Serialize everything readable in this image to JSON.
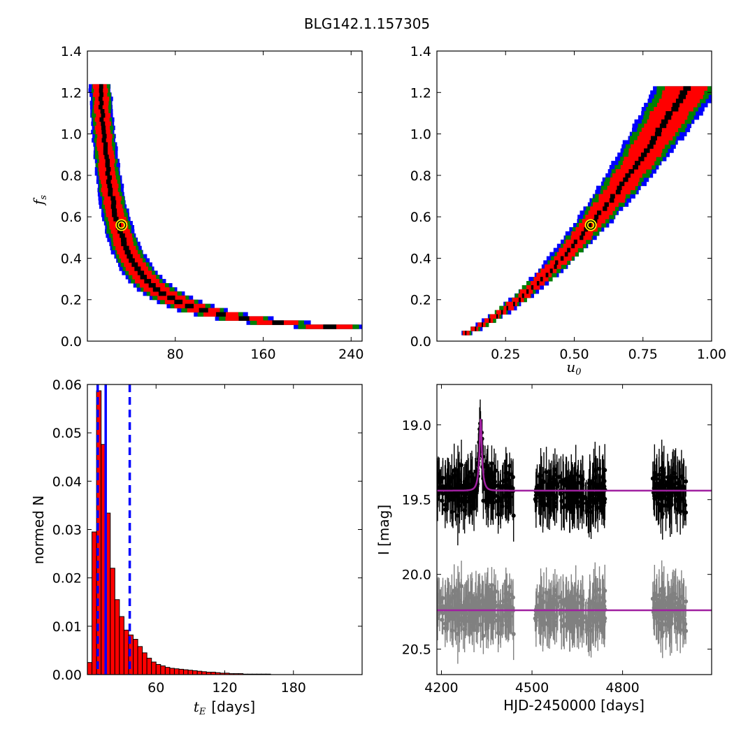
{
  "figure": {
    "title": "BLG142.1.157305"
  },
  "colors": {
    "sigma1": "#000000",
    "sigma2": "#ff0000",
    "sigma3": "#008000",
    "sigma4": "#0000ff",
    "best_fit_marker": "#ffff00",
    "bar": "#ff0000",
    "median_line": "#0000ff",
    "model_curve": "#a020a0",
    "data_main": "#000000",
    "data_residual": "#808080"
  },
  "chart_data": [
    {
      "type": "heatmap",
      "panel": "tE-fs",
      "xlabel": "",
      "ylabel": "f_s",
      "xlim": [
        0,
        250
      ],
      "ylim": [
        0.0,
        1.4
      ],
      "xticks": [
        80,
        160,
        240
      ],
      "yticks": [
        0.0,
        0.2,
        0.4,
        0.6,
        0.8,
        1.0,
        1.2,
        1.4
      ],
      "best_fit": {
        "x": 31,
        "y": 0.56
      },
      "levels": [
        "1-sigma (black)",
        "2-sigma (red)",
        "3-sigma (green)",
        "4-sigma (blue)"
      ]
    },
    {
      "type": "heatmap",
      "panel": "u0-fs",
      "xlabel": "u_0",
      "ylabel": "",
      "xlim": [
        0.0,
        1.0
      ],
      "ylim": [
        0.0,
        1.4
      ],
      "xticks": [
        0.25,
        0.5,
        0.75,
        1.0
      ],
      "xtick_labels": [
        "0.25",
        "0.50",
        "0.75",
        "1.00"
      ],
      "yticks": [
        0.0,
        0.2,
        0.4,
        0.6,
        0.8,
        1.0,
        1.2,
        1.4
      ],
      "best_fit": {
        "x": 0.56,
        "y": 0.56
      }
    },
    {
      "type": "bar",
      "panel": "tE-histogram",
      "xlabel": "t_E [days]",
      "ylabel": "normed N",
      "xlim": [
        0,
        240
      ],
      "ylim": [
        0.0,
        0.06
      ],
      "xticks": [
        60,
        120,
        180
      ],
      "yticks": [
        0.0,
        0.01,
        0.02,
        0.03,
        0.04,
        0.05,
        0.06
      ],
      "bin_width": 4,
      "bin_start": 0,
      "values": [
        0.0025,
        0.0295,
        0.0587,
        0.0476,
        0.0334,
        0.022,
        0.0155,
        0.012,
        0.0092,
        0.0082,
        0.0073,
        0.0058,
        0.0045,
        0.0034,
        0.0026,
        0.0021,
        0.0018,
        0.0015,
        0.0013,
        0.0012,
        0.0011,
        0.001,
        0.0009,
        0.0008,
        0.0007,
        0.0006,
        0.0005,
        0.0005,
        0.0004,
        0.0003,
        0.0003,
        0.0002,
        0.0002,
        0.0002,
        0.0001,
        0.0001,
        0.0001,
        0.0001,
        0.0001,
        0.0001
      ],
      "median": 16,
      "lower": 9,
      "upper": 37
    },
    {
      "type": "scatter",
      "panel": "light-curve",
      "xlabel": "HJD-2450000 [days]",
      "ylabel": "I [mag]",
      "xlim": [
        4185,
        5095
      ],
      "ylim": [
        20.67,
        18.73
      ],
      "xticks": [
        4200,
        4500,
        4800
      ],
      "yticks": [
        19.0,
        19.5,
        20.0,
        20.5
      ],
      "ytick_labels": [
        "19.0",
        "19.5",
        "20.0",
        "20.5"
      ],
      "baseline": 19.44,
      "peak_mag": 18.96,
      "peak_time": 4330,
      "residual_offset": 0.8,
      "seasons": [
        [
          4185,
          4440
        ],
        [
          4510,
          4745
        ],
        [
          4900,
          5010
        ]
      ]
    }
  ],
  "axis_text": {
    "p1_ylabel_f": "f",
    "p1_ylabel_sub": "s",
    "p2_xlabel_u": "u",
    "p2_xlabel_sub": "0",
    "p3_xlabel_t": "t",
    "p3_xlabel_sub": "E",
    "p3_xlabel_unit": "[days]",
    "p3_ylabel": "normed N",
    "p4_xlabel": "HJD-2450000 [days]",
    "p4_ylabel": "I [mag]"
  }
}
